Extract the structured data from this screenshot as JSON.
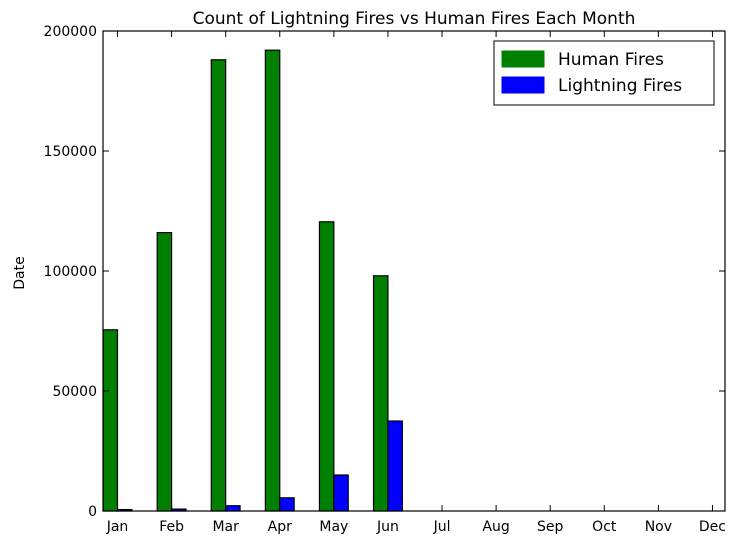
{
  "chart_data": {
    "type": "bar",
    "title": "Count of Lightning Fires vs Human Fires Each Month",
    "xlabel": "",
    "ylabel": "Date",
    "ylim": [
      0,
      200000
    ],
    "yticks": [
      0,
      50000,
      100000,
      150000,
      200000
    ],
    "ytick_labels": [
      "0",
      "50000",
      "100000",
      "150000",
      "200000"
    ],
    "categories": [
      "Jan",
      "Feb",
      "Mar",
      "Apr",
      "May",
      "Jun",
      "Jul",
      "Aug",
      "Sep",
      "Oct",
      "Nov",
      "Dec"
    ],
    "series": [
      {
        "name": "Human Fires",
        "color": "#008000",
        "values": [
          75500,
          116000,
          188000,
          192000,
          120500,
          98000,
          0,
          0,
          0,
          0,
          0,
          0
        ]
      },
      {
        "name": "Lightning Fires",
        "color": "#0000ff",
        "values": [
          600,
          800,
          2200,
          5500,
          15000,
          37500,
          0,
          0,
          0,
          0,
          0,
          0
        ]
      }
    ],
    "legend": {
      "position": "top-right"
    },
    "grid": false
  }
}
